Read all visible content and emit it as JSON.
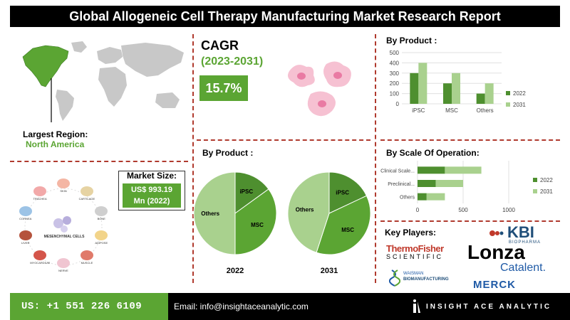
{
  "header": {
    "title": "Global Allogeneic Cell Therapy Manufacturing Market Research Report"
  },
  "region": {
    "label": "Largest Region:",
    "value": "North America"
  },
  "cagr": {
    "title": "CAGR",
    "years": "(2023-2031)",
    "value": "15.7%"
  },
  "market_size": {
    "label": "Market Size:",
    "value_line1": "US$ 993.19",
    "value_line2": "Mn (2022)"
  },
  "illustration": {
    "center_label": "MESENCHYMAL CELLS",
    "items": [
      "SKIN",
      "CARTILAGE",
      "BONE",
      "ADIPOSE",
      "MUSCLE",
      "NERVE",
      "MYOCARDIUM",
      "LIVER",
      "CORNEA",
      "TRACHEA"
    ]
  },
  "key_players": {
    "title": "Key Players:",
    "logos": {
      "kbi": "KBI",
      "kbi_sub": "BIOPHARMA",
      "thermo": "ThermoFisher",
      "thermo_sub": "SCIENTIFIC",
      "lonza": "Lonza",
      "catalent": "Catalent.",
      "waisman": "WAISMAN",
      "waisman_sub": "BIOMANUFACTURING",
      "merck": "MERCK"
    }
  },
  "footer": {
    "phone": "US: +1 551 226 6109",
    "email": "Email: info@insightaceanalytic.com",
    "brand": "INSIGHT ACE ANALYTIC"
  },
  "colors": {
    "accent": "#5ba533",
    "light": "#a9d18e",
    "dark": "#4e8f2f",
    "divider": "#b03a2e"
  },
  "chart_data": [
    {
      "type": "bar",
      "title": "By Product :",
      "categories": [
        "iPSC",
        "MSC",
        "Others"
      ],
      "series": [
        {
          "name": "2022",
          "values": [
            300,
            200,
            100
          ]
        },
        {
          "name": "2031",
          "values": [
            400,
            300,
            200
          ]
        }
      ],
      "ylim": [
        0,
        500
      ],
      "yticks": [
        0,
        100,
        200,
        300,
        400,
        500
      ],
      "legend": "right"
    },
    {
      "type": "bar",
      "orientation": "horizontal",
      "stacked": true,
      "title": "By Scale Of Operation:",
      "categories": [
        "Clinical Scale...",
        "Preclinical...",
        "Others"
      ],
      "series": [
        {
          "name": "2022",
          "values": [
            300,
            200,
            100
          ]
        },
        {
          "name": "2031",
          "values": [
            400,
            300,
            200
          ]
        }
      ],
      "xlim": [
        0,
        1000
      ],
      "xticks": [
        0,
        500,
        1000
      ],
      "legend": "right"
    },
    {
      "type": "pie",
      "title": "By Product :",
      "label": "2022",
      "slices": [
        {
          "name": "iPSC",
          "value": 15
        },
        {
          "name": "MSC",
          "value": 35
        },
        {
          "name": "Others",
          "value": 50
        }
      ]
    },
    {
      "type": "pie",
      "label": "2031",
      "slices": [
        {
          "name": "iPSC",
          "value": 18
        },
        {
          "name": "MSC",
          "value": 37
        },
        {
          "name": "Others",
          "value": 45
        }
      ]
    }
  ]
}
